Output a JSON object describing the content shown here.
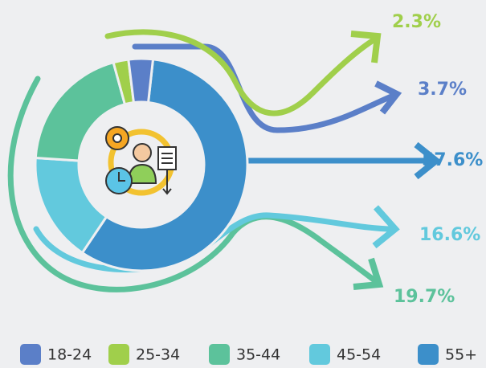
{
  "chart_data": {
    "type": "donut",
    "categories": [
      "18-24",
      "25-34",
      "35-44",
      "45-54",
      "55+"
    ],
    "values": [
      3.7,
      2.3,
      19.7,
      16.6,
      57.6
    ],
    "value_labels": [
      "3.7%",
      "2.3%",
      "19.7%",
      "16.6%",
      "57.6%"
    ],
    "colors": [
      "#5b7fc8",
      "#a0cf4b",
      "#5cc29b",
      "#62c9dd",
      "#3c8fca"
    ],
    "legend": "bottom"
  }
}
